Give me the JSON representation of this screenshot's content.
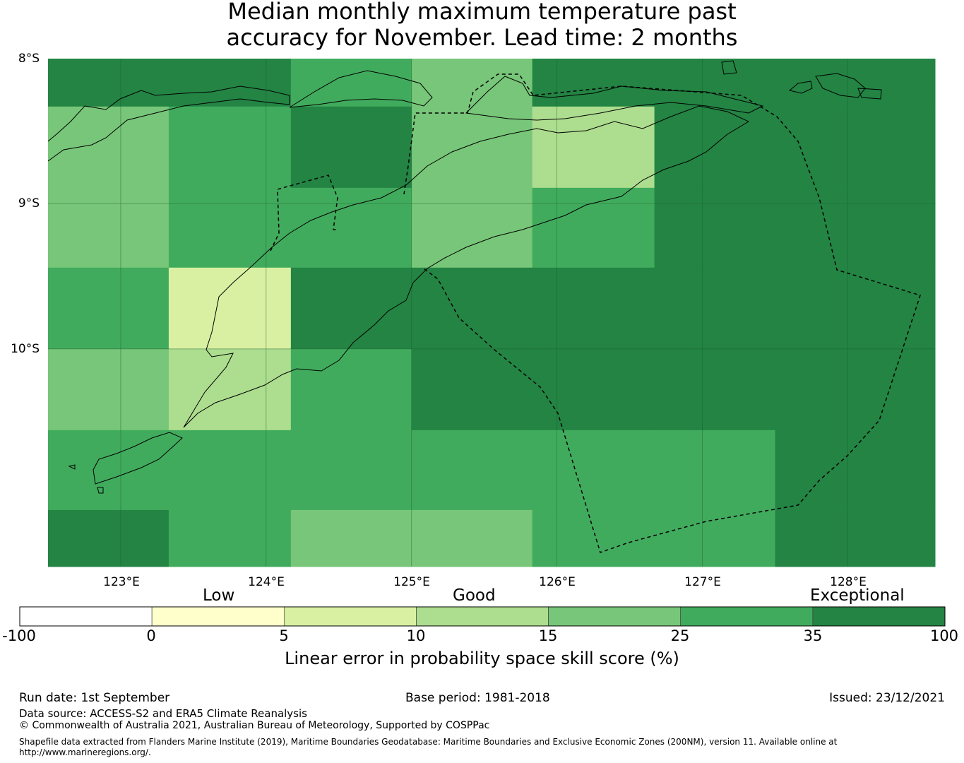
{
  "title_line1": "Median monthly maximum temperature past",
  "title_line2": "accuracy for November. Lead time: 2 months",
  "lat_labels": [
    "8°S",
    "9°S",
    "10°S"
  ],
  "lon_labels": [
    "123°E",
    "124°E",
    "125°E",
    "126°E",
    "127°E",
    "128°E"
  ],
  "categories": [
    "Low",
    "Good",
    "Exceptional"
  ],
  "colorbar": {
    "ticks": [
      "-100",
      "0",
      "5",
      "10",
      "15",
      "25",
      "35",
      "100"
    ],
    "colors": [
      "#ffffff",
      "#ffffcc",
      "#d9f0a3",
      "#addd8e",
      "#78c679",
      "#41ab5d",
      "#238443"
    ],
    "label": "Linear error in probability space skill score (%)"
  },
  "map": {
    "lon_min": 122.5,
    "lon_max": 128.6,
    "lat_max": -8.0,
    "lat_min": -11.5,
    "cell_lon_edges": [
      122.5,
      123.33,
      124.17,
      125.0,
      125.83,
      126.67,
      127.5,
      128.6
    ],
    "cell_lat_edges": [
      -8.0,
      -8.33,
      -8.89,
      -9.44,
      -10.0,
      -10.56,
      -11.11,
      -11.5
    ],
    "grid_classes": [
      [
        6,
        6,
        5,
        4,
        6,
        6,
        6
      ],
      [
        4,
        5,
        6,
        4,
        3,
        6,
        6
      ],
      [
        4,
        5,
        5,
        4,
        5,
        6,
        6
      ],
      [
        5,
        2,
        6,
        6,
        6,
        6,
        6
      ],
      [
        4,
        3,
        5,
        6,
        6,
        6,
        6
      ],
      [
        5,
        5,
        5,
        5,
        5,
        5,
        6
      ],
      [
        6,
        5,
        4,
        4,
        5,
        5,
        6
      ]
    ]
  },
  "footer": {
    "run_date": "Run date: 1st September",
    "base_period": "Base period: 1981-2018",
    "issued": "Issued: 23/12/2021",
    "data_source": "Data source: ACCESS-S2 and ERA5 Climate Reanalysis",
    "copyright": "© Commonwealth of Australia 2021, Australian Bureau of Meteorology, Supported by COSPPac",
    "shapefile": "Shapefile data extracted from Flanders Marine Institute (2019), Maritime Boundaries Geodatabase: Maritime Boundaries and Exclusive Economic Zones (200NM), version 11. Available online at http://www.marineregions.org/."
  }
}
